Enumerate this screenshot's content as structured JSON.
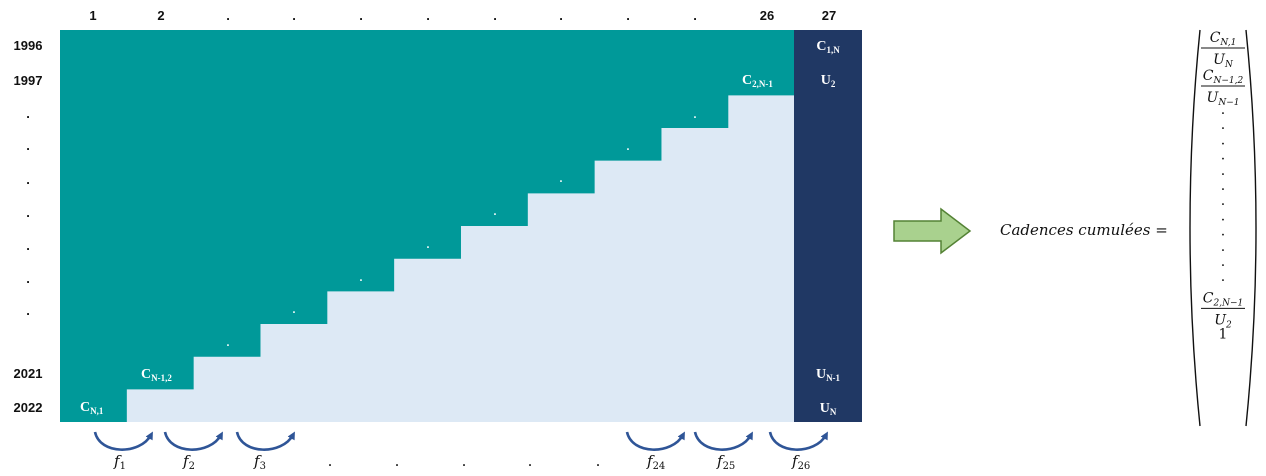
{
  "colors": {
    "teal": "#009999",
    "light": "#dde9f5",
    "navy": "#203864",
    "arrow_fill": "#a9d18e",
    "arrow_stroke": "#548235",
    "curve": "#2f5597"
  },
  "columns": [
    "1",
    "2",
    ".",
    ".",
    ".",
    ".",
    ".",
    ".",
    ".",
    ".",
    "26",
    "27"
  ],
  "rows": [
    "1996",
    "1997",
    ".",
    ".",
    ".",
    ".",
    ".",
    ".",
    ".",
    "2021",
    "2022"
  ],
  "cells": {
    "c_n1": {
      "main": "C",
      "sub": "N,1"
    },
    "c_n12": {
      "main": "C",
      "sub": "N-1,2"
    },
    "c_2n1": {
      "main": "C",
      "sub": "2,N-1"
    },
    "step_dot": "."
  },
  "last_column": [
    {
      "main": "C",
      "sub": "1,N"
    },
    {
      "main": "U",
      "sub": "2"
    },
    {
      "main": "U",
      "sub": "N-1"
    },
    {
      "main": "U",
      "sub": "N"
    }
  ],
  "factors": [
    {
      "main": "f",
      "sub": "1"
    },
    {
      "main": "f",
      "sub": "2"
    },
    {
      "main": "f",
      "sub": "3"
    },
    {
      "dot": "."
    },
    {
      "dot": "."
    },
    {
      "dot": "."
    },
    {
      "dot": "."
    },
    {
      "dot": "."
    },
    {
      "main": "f",
      "sub": "24"
    },
    {
      "main": "f",
      "sub": "25"
    },
    {
      "main": "f",
      "sub": "26"
    }
  ],
  "equation": {
    "label": "Cadences cumulées =",
    "vector": [
      {
        "num": {
          "main": "C",
          "sub": "N,1"
        },
        "den": {
          "main": "U",
          "sub": "N"
        }
      },
      {
        "num": {
          "main": "C",
          "sub": "N−1,2"
        },
        "den": {
          "main": "U",
          "sub": "N−1"
        }
      },
      {
        "dot": "."
      },
      {
        "dot": "."
      },
      {
        "dot": "."
      },
      {
        "dot": "."
      },
      {
        "dot": "."
      },
      {
        "dot": "."
      },
      {
        "dot": "."
      },
      {
        "dot": "."
      },
      {
        "dot": "."
      },
      {
        "dot": "."
      },
      {
        "dot": "."
      },
      {
        "dot": "."
      },
      {
        "num": {
          "main": "C",
          "sub": "2,N−1"
        },
        "den": {
          "main": "U",
          "sub": "2"
        }
      },
      {
        "value": "1"
      }
    ]
  }
}
